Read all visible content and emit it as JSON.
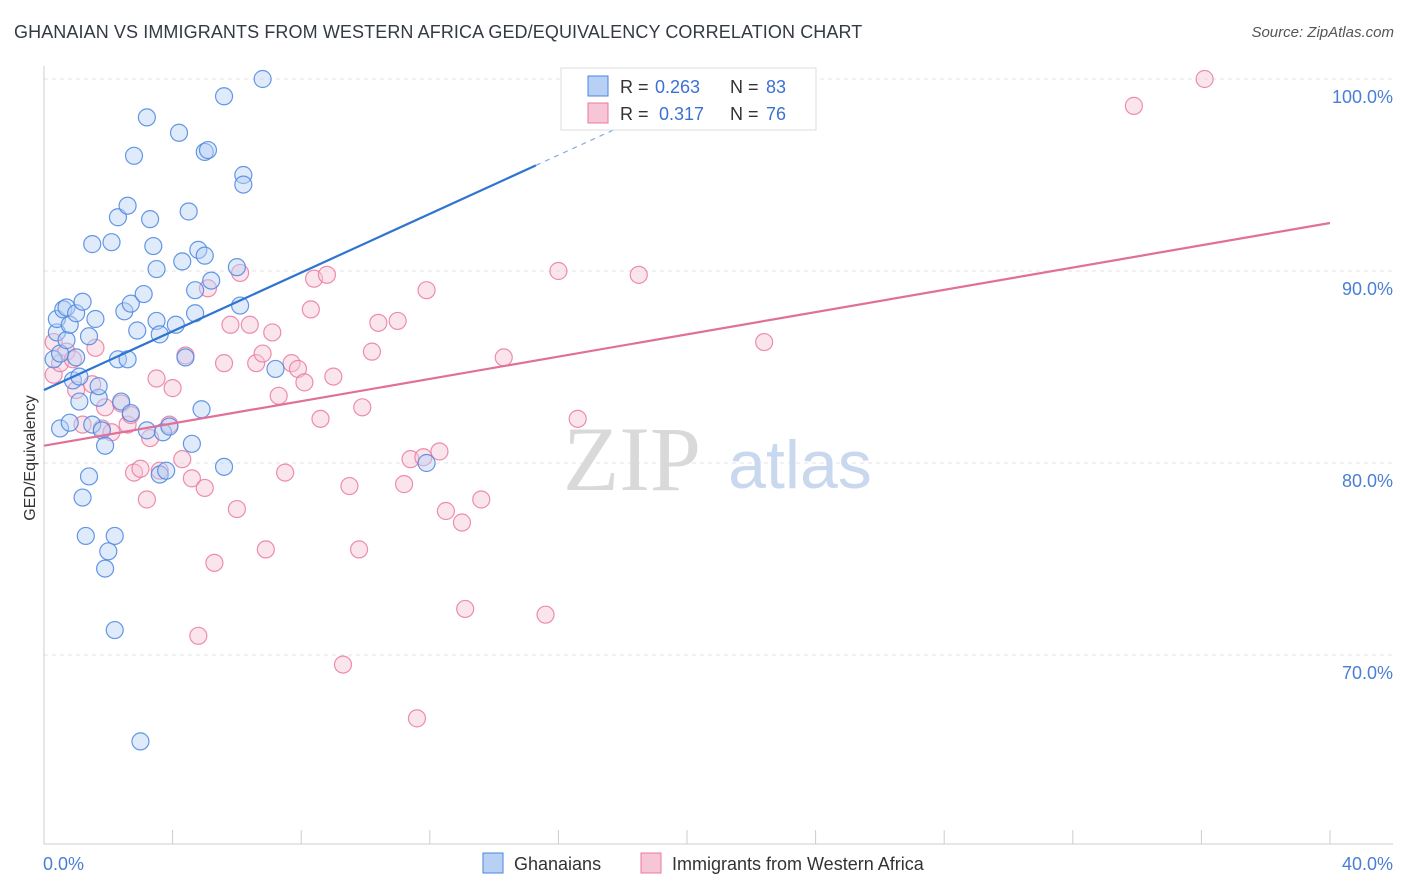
{
  "header": {
    "title": "GHANAIAN VS IMMIGRANTS FROM WESTERN AFRICA GED/EQUIVALENCY CORRELATION CHART",
    "source": "Source: ZipAtlas.com"
  },
  "watermark": {
    "zip": "ZIP",
    "atlas": "atlas"
  },
  "colors": {
    "blue": "#4a86e0",
    "blue_fill": "#b8d0f3",
    "blue_line": "#2f74d0",
    "pink": "#ea7aa0",
    "pink_fill": "#f6c6d6",
    "pink_line": "#e0709a",
    "tick_text": "#4a7ed6"
  },
  "stats_box": {
    "rows": [
      {
        "r_label": "R =",
        "r_value": "0.263",
        "n_label": "N =",
        "n_value": "83"
      },
      {
        "r_label": "R =",
        "r_value": "0.317",
        "n_label": "N =",
        "n_value": "76"
      }
    ]
  },
  "chart_data": {
    "type": "scatter",
    "xlabel": "",
    "ylabel": "GED/Equivalency",
    "xlim": [
      0,
      40
    ],
    "ylim": [
      62,
      101
    ],
    "x_tick_labels": [
      "0.0%",
      "40.0%"
    ],
    "y_ticks": [
      70,
      80,
      90,
      100
    ],
    "y_tick_labels": [
      "70.0%",
      "80.0%",
      "90.0%",
      "100.0%"
    ],
    "grid": true,
    "legend_position": "bottom-center",
    "series": [
      {
        "name": "Ghanaians",
        "color": "#4a86e0",
        "trend": {
          "x0": 0,
          "y0": 83.8,
          "x1": 15.3,
          "y1": 95.5,
          "dashed_to_x": 18.5
        },
        "points": [
          [
            0.3,
            85.4
          ],
          [
            0.4,
            86.8
          ],
          [
            0.4,
            87.5
          ],
          [
            0.5,
            81.8
          ],
          [
            0.5,
            85.7
          ],
          [
            0.6,
            88.0
          ],
          [
            0.7,
            86.4
          ],
          [
            0.7,
            88.1
          ],
          [
            0.8,
            87.2
          ],
          [
            0.8,
            82.1
          ],
          [
            0.9,
            84.3
          ],
          [
            1.0,
            87.8
          ],
          [
            1.0,
            85.5
          ],
          [
            1.1,
            84.5
          ],
          [
            1.1,
            83.2
          ],
          [
            1.2,
            88.4
          ],
          [
            1.2,
            78.2
          ],
          [
            1.3,
            76.2
          ],
          [
            1.4,
            86.6
          ],
          [
            1.4,
            79.3
          ],
          [
            1.5,
            91.4
          ],
          [
            1.5,
            82.0
          ],
          [
            1.6,
            87.5
          ],
          [
            1.7,
            83.4
          ],
          [
            1.7,
            84.0
          ],
          [
            1.8,
            81.7
          ],
          [
            1.9,
            80.9
          ],
          [
            1.9,
            74.5
          ],
          [
            2.0,
            75.4
          ],
          [
            2.1,
            91.5
          ],
          [
            2.2,
            71.3
          ],
          [
            2.2,
            76.2
          ],
          [
            2.3,
            92.8
          ],
          [
            2.3,
            85.4
          ],
          [
            2.4,
            83.2
          ],
          [
            2.5,
            87.9
          ],
          [
            2.6,
            85.4
          ],
          [
            2.6,
            93.4
          ],
          [
            2.7,
            82.6
          ],
          [
            2.7,
            88.3
          ],
          [
            2.8,
            96.0
          ],
          [
            2.9,
            86.9
          ],
          [
            3.0,
            65.5
          ],
          [
            3.1,
            88.8
          ],
          [
            3.2,
            81.7
          ],
          [
            3.2,
            98.0
          ],
          [
            3.3,
            92.7
          ],
          [
            3.4,
            91.3
          ],
          [
            3.5,
            87.4
          ],
          [
            3.5,
            90.1
          ],
          [
            3.6,
            79.4
          ],
          [
            3.6,
            86.7
          ],
          [
            3.7,
            81.6
          ],
          [
            3.8,
            79.6
          ],
          [
            3.9,
            81.9
          ],
          [
            4.1,
            87.2
          ],
          [
            4.2,
            97.2
          ],
          [
            4.3,
            90.5
          ],
          [
            4.4,
            85.5
          ],
          [
            4.5,
            93.1
          ],
          [
            4.6,
            81.0
          ],
          [
            4.7,
            87.8
          ],
          [
            4.7,
            89.0
          ],
          [
            4.8,
            91.1
          ],
          [
            4.9,
            82.8
          ],
          [
            5.0,
            96.2
          ],
          [
            5.0,
            90.8
          ],
          [
            5.1,
            96.3
          ],
          [
            5.2,
            89.5
          ],
          [
            5.6,
            99.1
          ],
          [
            5.6,
            79.8
          ],
          [
            6.0,
            90.2
          ],
          [
            6.1,
            88.2
          ],
          [
            6.2,
            95.0
          ],
          [
            6.2,
            94.5
          ],
          [
            6.8,
            100.0
          ],
          [
            7.2,
            84.9
          ],
          [
            11.9,
            80.0
          ]
        ]
      },
      {
        "name": "Immigrants from Western Africa",
        "color": "#ea7aa0",
        "trend": {
          "x0": 0,
          "y0": 80.9,
          "x1": 40,
          "y1": 92.5
        },
        "points": [
          [
            0.3,
            84.6
          ],
          [
            0.3,
            86.3
          ],
          [
            0.5,
            85.2
          ],
          [
            0.7,
            85.8
          ],
          [
            0.9,
            85.4
          ],
          [
            1.0,
            83.8
          ],
          [
            1.2,
            82.0
          ],
          [
            1.5,
            84.1
          ],
          [
            1.6,
            86.0
          ],
          [
            1.8,
            81.8
          ],
          [
            1.9,
            82.9
          ],
          [
            2.1,
            81.6
          ],
          [
            2.4,
            83.1
          ],
          [
            2.6,
            82.0
          ],
          [
            2.7,
            82.5
          ],
          [
            2.8,
            79.5
          ],
          [
            3.0,
            79.7
          ],
          [
            3.2,
            78.1
          ],
          [
            3.3,
            81.3
          ],
          [
            3.5,
            84.4
          ],
          [
            3.6,
            79.6
          ],
          [
            3.9,
            82.0
          ],
          [
            4.0,
            83.9
          ],
          [
            4.3,
            80.2
          ],
          [
            4.4,
            85.6
          ],
          [
            4.6,
            79.2
          ],
          [
            4.8,
            71.0
          ],
          [
            5.0,
            78.7
          ],
          [
            5.1,
            89.1
          ],
          [
            5.3,
            74.8
          ],
          [
            5.6,
            85.2
          ],
          [
            5.8,
            87.2
          ],
          [
            6.0,
            77.6
          ],
          [
            6.1,
            89.9
          ],
          [
            6.4,
            87.2
          ],
          [
            6.6,
            85.2
          ],
          [
            6.8,
            85.7
          ],
          [
            6.9,
            75.5
          ],
          [
            7.1,
            86.8
          ],
          [
            7.3,
            83.5
          ],
          [
            7.5,
            79.5
          ],
          [
            7.7,
            85.2
          ],
          [
            7.9,
            84.9
          ],
          [
            8.1,
            84.2
          ],
          [
            8.3,
            88.0
          ],
          [
            8.4,
            89.6
          ],
          [
            8.6,
            82.3
          ],
          [
            8.8,
            89.8
          ],
          [
            9.0,
            84.5
          ],
          [
            9.3,
            69.5
          ],
          [
            9.5,
            78.8
          ],
          [
            9.8,
            75.5
          ],
          [
            9.9,
            82.9
          ],
          [
            10.2,
            85.8
          ],
          [
            10.4,
            87.3
          ],
          [
            11.0,
            87.4
          ],
          [
            11.2,
            78.9
          ],
          [
            11.4,
            80.2
          ],
          [
            11.6,
            66.7
          ],
          [
            11.8,
            80.3
          ],
          [
            11.9,
            89.0
          ],
          [
            12.3,
            80.6
          ],
          [
            12.5,
            77.5
          ],
          [
            13.0,
            76.9
          ],
          [
            13.1,
            72.4
          ],
          [
            13.6,
            78.1
          ],
          [
            14.3,
            85.5
          ],
          [
            15.6,
            72.1
          ],
          [
            16.0,
            90.0
          ],
          [
            16.6,
            82.3
          ],
          [
            18.5,
            89.8
          ],
          [
            22.4,
            86.3
          ],
          [
            33.9,
            98.6
          ],
          [
            36.1,
            100.0
          ]
        ]
      }
    ]
  }
}
